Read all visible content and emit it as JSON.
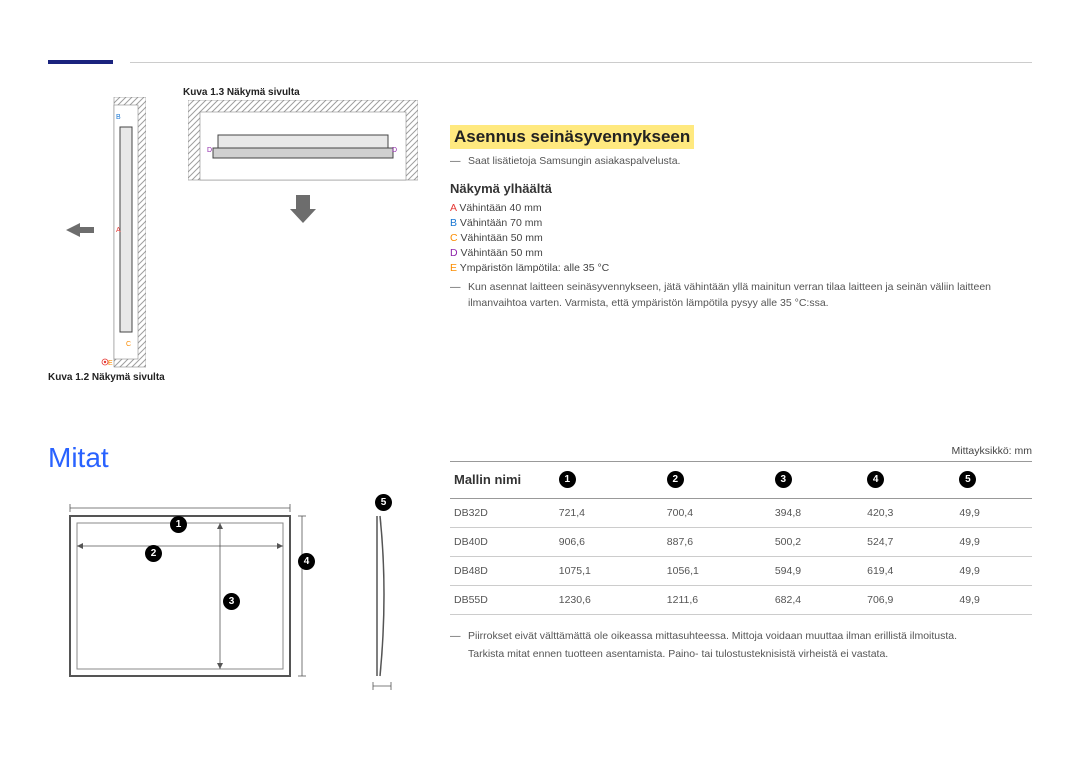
{
  "figure_labels": {
    "side_top": "Kuva 1.3 Näkymä sivulta",
    "side_bottom": "Kuva 1.2 Näkymä sivulta"
  },
  "section_title_left": "Mitat",
  "right": {
    "title": "Asennus seinäsyvennykseen",
    "service_note": "Saat lisätietoja Samsungin asiakaspalvelusta.",
    "top_view_heading": "Näkymä ylhäältä",
    "legend": [
      {
        "key": "A",
        "cls": "lk-A",
        "text": "Vähintään 40 mm"
      },
      {
        "key": "B",
        "cls": "lk-B",
        "text": "Vähintään 70 mm"
      },
      {
        "key": "C",
        "cls": "lk-C",
        "text": "Vähintään 50 mm"
      },
      {
        "key": "D",
        "cls": "lk-D",
        "text": "Vähintään 50 mm"
      },
      {
        "key": "E",
        "cls": "lk-E",
        "text": "Ympäristön lämpötila: alle 35 °C"
      }
    ],
    "install_note": "Kun asennat laitteen seinäsyvennykseen, jätä vähintään yllä mainitun verran tilaa laitteen ja seinän väliin laitteen ilmanvaihtoa varten. Varmista, että ympäristön lämpötila pysyy alle 35 °C:ssa."
  },
  "table": {
    "unit_label": "Mittayksikkö: mm",
    "header_first": "Mallin nimi",
    "col_numbers": [
      "1",
      "2",
      "3",
      "4",
      "5"
    ],
    "rows": [
      {
        "model": "DB32D",
        "v": [
          "721,4",
          "700,4",
          "394,8",
          "420,3",
          "49,9"
        ]
      },
      {
        "model": "DB40D",
        "v": [
          "906,6",
          "887,6",
          "500,2",
          "524,7",
          "49,9"
        ]
      },
      {
        "model": "DB48D",
        "v": [
          "1075,1",
          "1056,1",
          "594,9",
          "619,4",
          "49,9"
        ]
      },
      {
        "model": "DB55D",
        "v": [
          "1230,6",
          "1211,6",
          "682,4",
          "706,9",
          "49,9"
        ]
      }
    ],
    "footer_notes": [
      "Piirrokset eivät välttämättä ole oikeassa mittasuhteessa. Mittoja voidaan muuttaa ilman erillistä ilmoitusta.",
      "Tarkista mitat ennen tuotteen asentamista. Paino- tai tulostusteknisistä virheistä ei vastata."
    ]
  },
  "diagram_legend_letters": {
    "A": "A",
    "B": "B",
    "C": "C",
    "D": "D",
    "E": "E"
  },
  "dim_numbers": [
    "1",
    "2",
    "3",
    "4",
    "5"
  ],
  "colors": {
    "accent": "#2962ff",
    "highlight": "#ffe97f",
    "hatch": "#999999",
    "wall_fill": "#bdbdbd",
    "device": "#e0e0e0",
    "border": "#333333"
  }
}
